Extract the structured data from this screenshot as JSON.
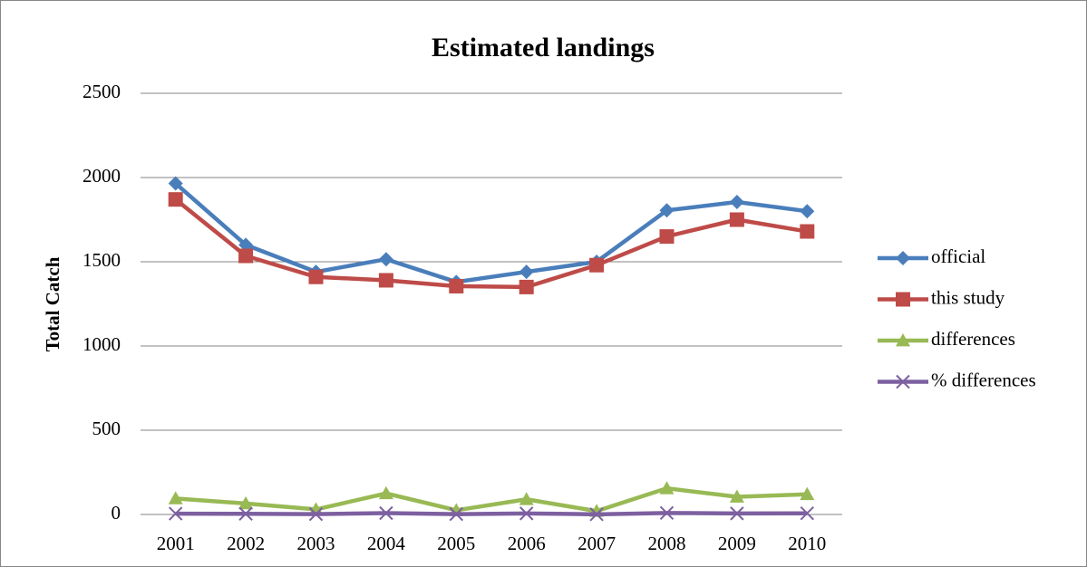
{
  "chart_data": {
    "type": "line",
    "title": "Estimated landings",
    "y_label": "Total Catch",
    "categories": [
      "2001",
      "2002",
      "2003",
      "2004",
      "2005",
      "2006",
      "2007",
      "2008",
      "2009",
      "2010"
    ],
    "series": [
      {
        "name": "official",
        "color": "#4a7ebb",
        "marker": "diamond",
        "values": [
          1965,
          1600,
          1440,
          1515,
          1380,
          1440,
          1500,
          1805,
          1855,
          1800
        ]
      },
      {
        "name": "this study",
        "color": "#be4b48",
        "marker": "square",
        "values": [
          1870,
          1535,
          1410,
          1390,
          1355,
          1350,
          1480,
          1650,
          1750,
          1680
        ]
      },
      {
        "name": "differences",
        "color": "#98b954",
        "marker": "triangle",
        "values": [
          95,
          65,
          30,
          125,
          25,
          90,
          20,
          155,
          105,
          120
        ]
      },
      {
        "name": "% differences",
        "color": "#7d60a0",
        "marker": "x",
        "values": [
          5,
          4,
          2,
          8,
          2,
          6,
          1,
          9,
          6,
          7
        ]
      }
    ],
    "ylim": [
      0,
      2500
    ],
    "yticks": [
      0,
      500,
      1000,
      1500,
      2000,
      2500
    ],
    "grid": true,
    "legend": "right"
  }
}
